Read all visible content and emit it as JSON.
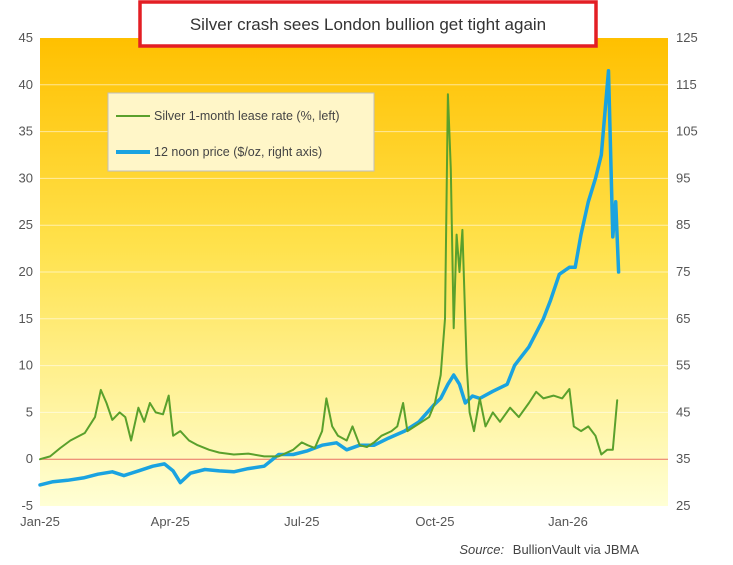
{
  "chart_data": {
    "type": "line",
    "title": "Silver crash sees London bullion get tight again",
    "source_label": "Source:",
    "source_text": "BullionVault via JBMA",
    "x_ticks": [
      "Jan-25",
      "Apr-25",
      "Jul-25",
      "Oct-25",
      "Jan-26"
    ],
    "y_left": {
      "min": -5,
      "max": 45,
      "ticks": [
        -5,
        0,
        5,
        10,
        15,
        20,
        25,
        30,
        35,
        40,
        45
      ]
    },
    "y_right": {
      "min": 25,
      "max": 125,
      "ticks": [
        25,
        35,
        45,
        55,
        65,
        75,
        85,
        95,
        105,
        115,
        125
      ]
    },
    "zero_line": true,
    "grid": true,
    "legend_position": "top-left",
    "series": [
      {
        "name": "Silver 1-month lease rate (%, left)",
        "axis": "left",
        "color": "#5aa02c",
        "points": [
          [
            "2025-01-01",
            0
          ],
          [
            "2025-01-08",
            0.3
          ],
          [
            "2025-01-15",
            1.2
          ],
          [
            "2025-01-22",
            2.0
          ],
          [
            "2025-02-01",
            2.8
          ],
          [
            "2025-02-08",
            4.5
          ],
          [
            "2025-02-12",
            7.4
          ],
          [
            "2025-02-16",
            6.0
          ],
          [
            "2025-02-20",
            4.2
          ],
          [
            "2025-02-25",
            5.0
          ],
          [
            "2025-03-01",
            4.5
          ],
          [
            "2025-03-05",
            2.0
          ],
          [
            "2025-03-10",
            5.5
          ],
          [
            "2025-03-14",
            4.0
          ],
          [
            "2025-03-18",
            6.0
          ],
          [
            "2025-03-22",
            5.0
          ],
          [
            "2025-03-27",
            4.8
          ],
          [
            "2025-03-31",
            6.8
          ],
          [
            "2025-04-03",
            2.5
          ],
          [
            "2025-04-08",
            3.0
          ],
          [
            "2025-04-14",
            2.0
          ],
          [
            "2025-04-20",
            1.5
          ],
          [
            "2025-04-28",
            1.0
          ],
          [
            "2025-05-05",
            0.7
          ],
          [
            "2025-05-15",
            0.5
          ],
          [
            "2025-05-25",
            0.6
          ],
          [
            "2025-06-05",
            0.3
          ],
          [
            "2025-06-15",
            0.3
          ],
          [
            "2025-06-25",
            1.0
          ],
          [
            "2025-07-01",
            1.8
          ],
          [
            "2025-07-05",
            1.5
          ],
          [
            "2025-07-10",
            1.2
          ],
          [
            "2025-07-15",
            3.0
          ],
          [
            "2025-07-18",
            6.5
          ],
          [
            "2025-07-22",
            3.5
          ],
          [
            "2025-07-26",
            2.5
          ],
          [
            "2025-08-01",
            2.0
          ],
          [
            "2025-08-05",
            3.5
          ],
          [
            "2025-08-10",
            1.5
          ],
          [
            "2025-08-15",
            1.3
          ],
          [
            "2025-08-20",
            1.8
          ],
          [
            "2025-08-25",
            2.5
          ],
          [
            "2025-09-01",
            3.0
          ],
          [
            "2025-09-05",
            3.5
          ],
          [
            "2025-09-09",
            6.0
          ],
          [
            "2025-09-12",
            3.0
          ],
          [
            "2025-09-17",
            3.5
          ],
          [
            "2025-09-22",
            4.0
          ],
          [
            "2025-09-27",
            4.5
          ],
          [
            "2025-10-01",
            6.0
          ],
          [
            "2025-10-05",
            9.0
          ],
          [
            "2025-10-08",
            15.0
          ],
          [
            "2025-10-10",
            39.0
          ],
          [
            "2025-10-12",
            31.0
          ],
          [
            "2025-10-14",
            14.0
          ],
          [
            "2025-10-16",
            24.0
          ],
          [
            "2025-10-18",
            20.0
          ],
          [
            "2025-10-20",
            24.5
          ],
          [
            "2025-10-23",
            10.0
          ],
          [
            "2025-10-25",
            5.0
          ],
          [
            "2025-10-28",
            3.0
          ],
          [
            "2025-11-01",
            6.5
          ],
          [
            "2025-11-05",
            3.5
          ],
          [
            "2025-11-10",
            5.0
          ],
          [
            "2025-11-15",
            4.0
          ],
          [
            "2025-11-22",
            5.5
          ],
          [
            "2025-11-28",
            4.5
          ],
          [
            "2025-12-05",
            6.0
          ],
          [
            "2025-12-10",
            7.2
          ],
          [
            "2025-12-15",
            6.5
          ],
          [
            "2025-12-22",
            6.8
          ],
          [
            "2025-12-28",
            6.5
          ],
          [
            "2026-01-02",
            7.5
          ],
          [
            "2026-01-05",
            3.5
          ],
          [
            "2026-01-10",
            3.0
          ],
          [
            "2026-01-15",
            3.5
          ],
          [
            "2026-01-20",
            2.5
          ],
          [
            "2026-01-24",
            0.5
          ],
          [
            "2026-01-28",
            1.0
          ],
          [
            "2026-02-01",
            1.0
          ],
          [
            "2026-02-04",
            6.3
          ]
        ]
      },
      {
        "name": "12 noon price ($/oz, right axis)",
        "axis": "right",
        "color": "#1aa3e0",
        "points": [
          [
            "2025-01-01",
            29.5
          ],
          [
            "2025-01-10",
            30.2
          ],
          [
            "2025-01-20",
            30.5
          ],
          [
            "2025-01-31",
            31.0
          ],
          [
            "2025-02-10",
            31.8
          ],
          [
            "2025-02-20",
            32.3
          ],
          [
            "2025-02-28",
            31.5
          ],
          [
            "2025-03-10",
            32.5
          ],
          [
            "2025-03-20",
            33.5
          ],
          [
            "2025-03-28",
            34.0
          ],
          [
            "2025-04-03",
            32.5
          ],
          [
            "2025-04-08",
            30.0
          ],
          [
            "2025-04-15",
            32.0
          ],
          [
            "2025-04-25",
            32.8
          ],
          [
            "2025-05-05",
            32.5
          ],
          [
            "2025-05-15",
            32.3
          ],
          [
            "2025-05-25",
            33.0
          ],
          [
            "2025-06-05",
            33.5
          ],
          [
            "2025-06-15",
            36.0
          ],
          [
            "2025-06-25",
            36.0
          ],
          [
            "2025-07-05",
            36.8
          ],
          [
            "2025-07-15",
            38.0
          ],
          [
            "2025-07-25",
            38.5
          ],
          [
            "2025-08-01",
            37.0
          ],
          [
            "2025-08-10",
            38.0
          ],
          [
            "2025-08-20",
            38.0
          ],
          [
            "2025-08-30",
            39.5
          ],
          [
            "2025-09-10",
            41.0
          ],
          [
            "2025-09-20",
            43.0
          ],
          [
            "2025-09-30",
            46.5
          ],
          [
            "2025-10-05",
            48.0
          ],
          [
            "2025-10-10",
            51.0
          ],
          [
            "2025-10-14",
            53.0
          ],
          [
            "2025-10-18",
            51.0
          ],
          [
            "2025-10-22",
            47.0
          ],
          [
            "2025-10-27",
            48.5
          ],
          [
            "2025-11-01",
            48.0
          ],
          [
            "2025-11-10",
            49.5
          ],
          [
            "2025-11-20",
            51.0
          ],
          [
            "2025-11-25",
            55.0
          ],
          [
            "2025-11-30",
            57.0
          ],
          [
            "2025-12-05",
            59.0
          ],
          [
            "2025-12-10",
            62.0
          ],
          [
            "2025-12-15",
            65.0
          ],
          [
            "2025-12-20",
            69.0
          ],
          [
            "2025-12-26",
            74.5
          ],
          [
            "2026-01-02",
            76.0
          ],
          [
            "2026-01-06",
            76.0
          ],
          [
            "2026-01-10",
            83.0
          ],
          [
            "2026-01-15",
            90.0
          ],
          [
            "2026-01-20",
            95.0
          ],
          [
            "2026-01-24",
            100.0
          ],
          [
            "2026-01-29",
            118.0
          ],
          [
            "2026-02-01",
            82.5
          ],
          [
            "2026-02-03",
            90.0
          ],
          [
            "2026-02-05",
            75.0
          ]
        ]
      }
    ]
  },
  "style": {
    "title_border_color": "#e31e24",
    "bg_top_color": "#ffc000",
    "bg_bottom_color": "#ffffd5",
    "zero_line_color": "#e8705c",
    "grid_color": "#ffffff"
  }
}
